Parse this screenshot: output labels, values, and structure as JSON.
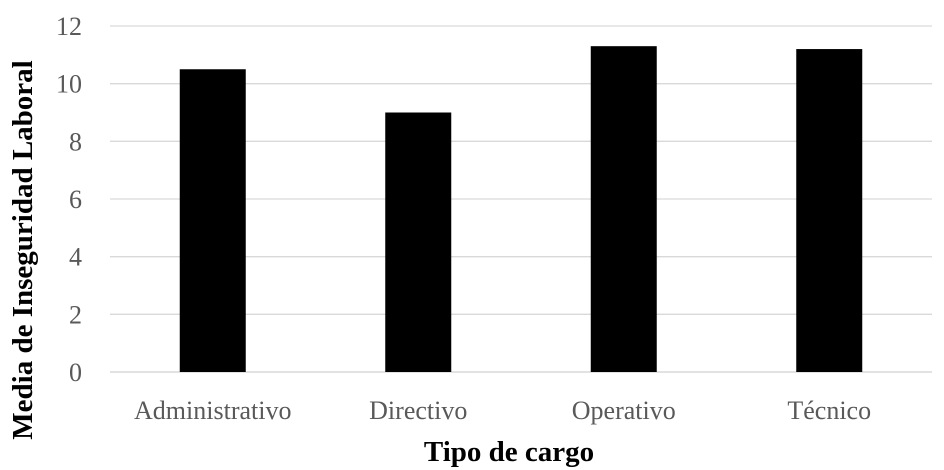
{
  "chart_data": {
    "type": "bar",
    "categories": [
      "Administrativo",
      "Directivo",
      "Operativo",
      "Técnico"
    ],
    "values": [
      10.5,
      9.0,
      11.3,
      11.2
    ],
    "title": "",
    "xlabel": "Tipo de cargo",
    "ylabel": "Media de Inseguridad Laboral",
    "ylim": [
      0,
      12
    ],
    "yticks": [
      "0",
      "2",
      "4",
      "6",
      "8",
      "10",
      "12"
    ],
    "grid": true,
    "legend": "none",
    "bar_color": "#000000"
  }
}
